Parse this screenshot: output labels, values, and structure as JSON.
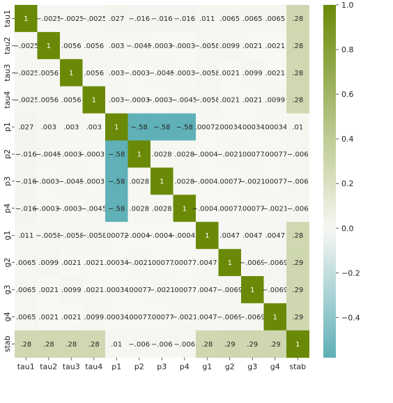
{
  "chart_data": {
    "type": "heatmap",
    "title": "",
    "xlabel": "",
    "ylabel": "",
    "x_labels": [
      "tau1",
      "tau2",
      "tau3",
      "tau4",
      "p1",
      "p2",
      "p3",
      "p4",
      "g1",
      "g2",
      "g3",
      "g4",
      "stab"
    ],
    "y_labels": [
      "tau1",
      "tau2",
      "tau3",
      "tau4",
      "p1",
      "p2",
      "p3",
      "p4",
      "g1",
      "g2",
      "g3",
      "g4",
      "stab"
    ],
    "values": [
      [
        1,
        -0.0025,
        -0.0025,
        -0.0025,
        0.027,
        -0.016,
        -0.016,
        -0.016,
        0.011,
        0.0065,
        0.0065,
        0.0065,
        0.28
      ],
      [
        -0.0025,
        1,
        0.0056,
        0.0056,
        0.003,
        -0.0045,
        -0.00037,
        -0.00037,
        -0.0058,
        0.0099,
        0.0021,
        0.0021,
        0.28
      ],
      [
        -0.0025,
        0.0056,
        1,
        0.0056,
        0.003,
        -0.00037,
        -0.0045,
        -0.00037,
        -0.0058,
        0.0021,
        0.0099,
        0.0021,
        0.28
      ],
      [
        -0.0025,
        0.0056,
        0.0056,
        1,
        0.003,
        -0.00037,
        -0.00037,
        -0.0045,
        -0.0058,
        0.0021,
        0.0021,
        0.0099,
        0.28
      ],
      [
        0.027,
        0.003,
        0.003,
        0.003,
        1,
        -0.58,
        -0.58,
        -0.58,
        0.00072,
        0.00034,
        0.00034,
        0.00034,
        0.01
      ],
      [
        -0.016,
        -0.0045,
        -0.00037,
        -0.00037,
        -0.58,
        1,
        0.0028,
        0.0028,
        -0.00042,
        -0.0021,
        0.00077,
        0.00077,
        -0.006
      ],
      [
        -0.016,
        -0.00037,
        -0.0045,
        -0.00037,
        -0.58,
        0.0028,
        1,
        0.0028,
        -0.00042,
        0.00077,
        -0.0021,
        0.00077,
        -0.006
      ],
      [
        -0.016,
        -0.00037,
        -0.00037,
        -0.0045,
        -0.58,
        0.0028,
        0.0028,
        1,
        -0.00042,
        0.00077,
        0.00077,
        -0.0021,
        -0.006
      ],
      [
        0.011,
        -0.0058,
        -0.0058,
        -0.0058,
        0.00072,
        -0.00042,
        -0.00042,
        -0.00042,
        1,
        0.0047,
        0.0047,
        0.0047,
        0.28
      ],
      [
        0.0065,
        0.0099,
        0.0021,
        0.0021,
        0.00034,
        -0.0021,
        0.00077,
        0.00077,
        0.0047,
        1,
        -0.0069,
        -0.0069,
        0.29
      ],
      [
        0.0065,
        0.0021,
        0.0099,
        0.0021,
        0.00034,
        0.00077,
        -0.0021,
        0.00077,
        0.0047,
        -0.0069,
        1,
        -0.0069,
        0.29
      ],
      [
        0.0065,
        0.0021,
        0.0021,
        0.0099,
        0.00034,
        0.00077,
        0.00077,
        -0.0021,
        0.0047,
        -0.0069,
        -0.0069,
        1,
        0.29
      ],
      [
        0.28,
        0.28,
        0.28,
        0.28,
        0.01,
        -0.006,
        -0.006,
        -0.006,
        0.28,
        0.29,
        0.29,
        0.29,
        1
      ]
    ],
    "vmin": -0.58,
    "vmax": 1,
    "colorbar": {
      "ticks": [
        1.0,
        0.8,
        0.6,
        0.4,
        0.2,
        0.0,
        -0.2,
        -0.4
      ],
      "tick_labels": [
        "1.0",
        "0.8",
        "0.6",
        "0.4",
        "0.2",
        "0.0",
        "−0.2",
        "−0.4"
      ]
    },
    "colors": {
      "negative": "#5fb0b7",
      "center": "#f7f7f3",
      "positive": "#6a8a07"
    },
    "annotations": true,
    "grid": false
  }
}
